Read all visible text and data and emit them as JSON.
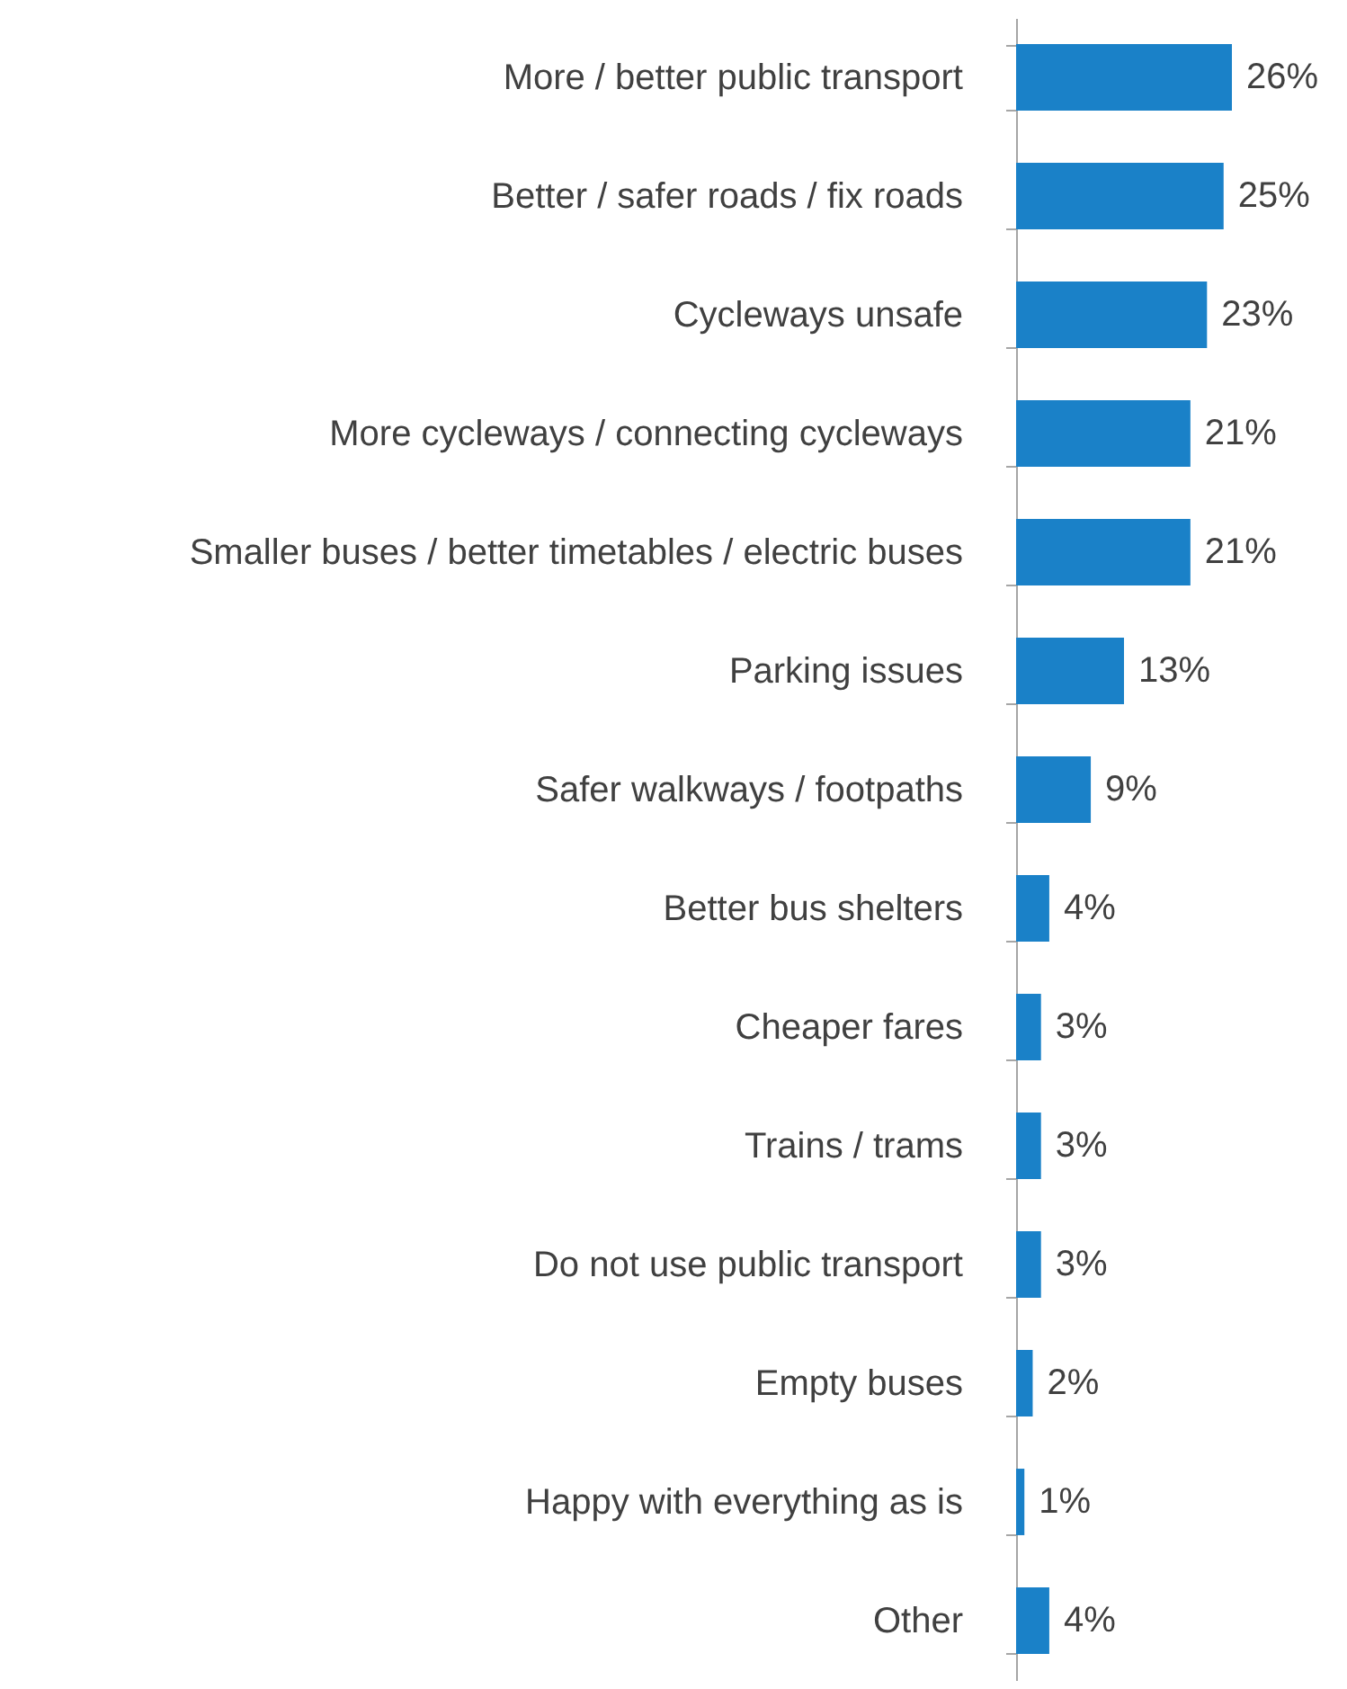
{
  "chart_data": {
    "type": "bar",
    "orientation": "horizontal",
    "categories": [
      "More / better public transport",
      "Better / safer roads / fix roads",
      "Cycleways unsafe",
      "More cycleways / connecting cycleways",
      "Smaller buses / better timetables / electric buses",
      "Parking issues",
      "Safer walkways / footpaths",
      "Better bus shelters",
      "Cheaper fares",
      "Trains / trams",
      "Do not use public transport",
      "Empty buses",
      "Happy with everything as is",
      "Other"
    ],
    "values": [
      26,
      25,
      23,
      21,
      21,
      13,
      9,
      4,
      3,
      3,
      3,
      2,
      1,
      4
    ],
    "value_labels": [
      "26%",
      "25%",
      "23%",
      "21%",
      "21%",
      "13%",
      "9%",
      "4%",
      "3%",
      "3%",
      "3%",
      "2%",
      "1%",
      "4%"
    ],
    "color": "#1a81c8"
  }
}
